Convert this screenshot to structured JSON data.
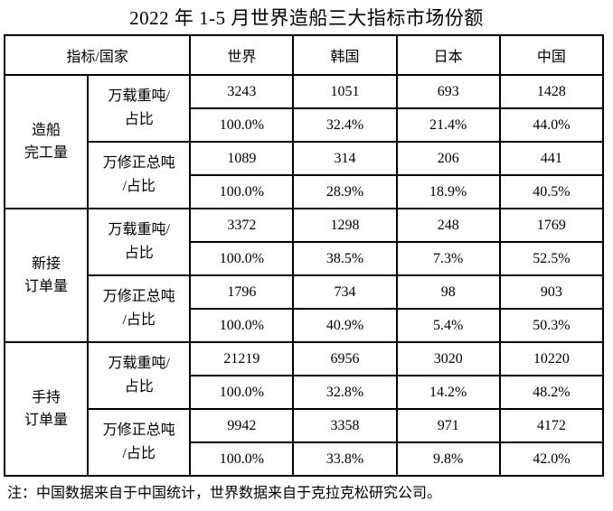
{
  "page": {
    "title": "2022 年 1-5 月世界造船三大指标市场份额",
    "note": "注：中国数据来自于中国统计，世界数据来自于克拉克松研究公司。"
  },
  "colors": {
    "border": "#000000",
    "text": "#000000",
    "background": "#ffffff"
  },
  "table": {
    "corner_header": "指标/国家",
    "columns": [
      "世界",
      "韩国",
      "日本",
      "中国"
    ],
    "groups": [
      {
        "label": "造船完工量",
        "label_lines": [
          "造船",
          "完工量"
        ],
        "metrics": [
          {
            "unit_label": "万载重吨/占比",
            "unit_lines": [
              "万载重吨/",
              "占比"
            ],
            "values": [
              "3243",
              "1051",
              "693",
              "1428"
            ],
            "shares": [
              "100.0%",
              "32.4%",
              "21.4%",
              "44.0%"
            ]
          },
          {
            "unit_label": "万修正总吨/占比",
            "unit_lines": [
              "万修正总吨",
              "/占比"
            ],
            "values": [
              "1089",
              "314",
              "206",
              "441"
            ],
            "shares": [
              "100.0%",
              "28.9%",
              "18.9%",
              "40.5%"
            ]
          }
        ]
      },
      {
        "label": "新接订单量",
        "label_lines": [
          "新接",
          "订单量"
        ],
        "metrics": [
          {
            "unit_label": "万载重吨/占比",
            "unit_lines": [
              "万载重吨/",
              "占比"
            ],
            "values": [
              "3372",
              "1298",
              "248",
              "1769"
            ],
            "shares": [
              "100.0%",
              "38.5%",
              "7.3%",
              "52.5%"
            ]
          },
          {
            "unit_label": "万修正总吨/占比",
            "unit_lines": [
              "万修正总吨",
              "/占比"
            ],
            "values": [
              "1796",
              "734",
              "98",
              "903"
            ],
            "shares": [
              "100.0%",
              "40.9%",
              "5.4%",
              "50.3%"
            ]
          }
        ]
      },
      {
        "label": "手持订单量",
        "label_lines": [
          "手持",
          "订单量"
        ],
        "metrics": [
          {
            "unit_label": "万载重吨/占比",
            "unit_lines": [
              "万载重吨/",
              "占比"
            ],
            "values": [
              "21219",
              "6956",
              "3020",
              "10220"
            ],
            "shares": [
              "100.0%",
              "32.8%",
              "14.2%",
              "48.2%"
            ]
          },
          {
            "unit_label": "万修正总吨/占比",
            "unit_lines": [
              "万修正总吨",
              "/占比"
            ],
            "values": [
              "9942",
              "3358",
              "971",
              "4172"
            ],
            "shares": [
              "100.0%",
              "33.8%",
              "9.8%",
              "42.0%"
            ]
          }
        ]
      }
    ]
  }
}
